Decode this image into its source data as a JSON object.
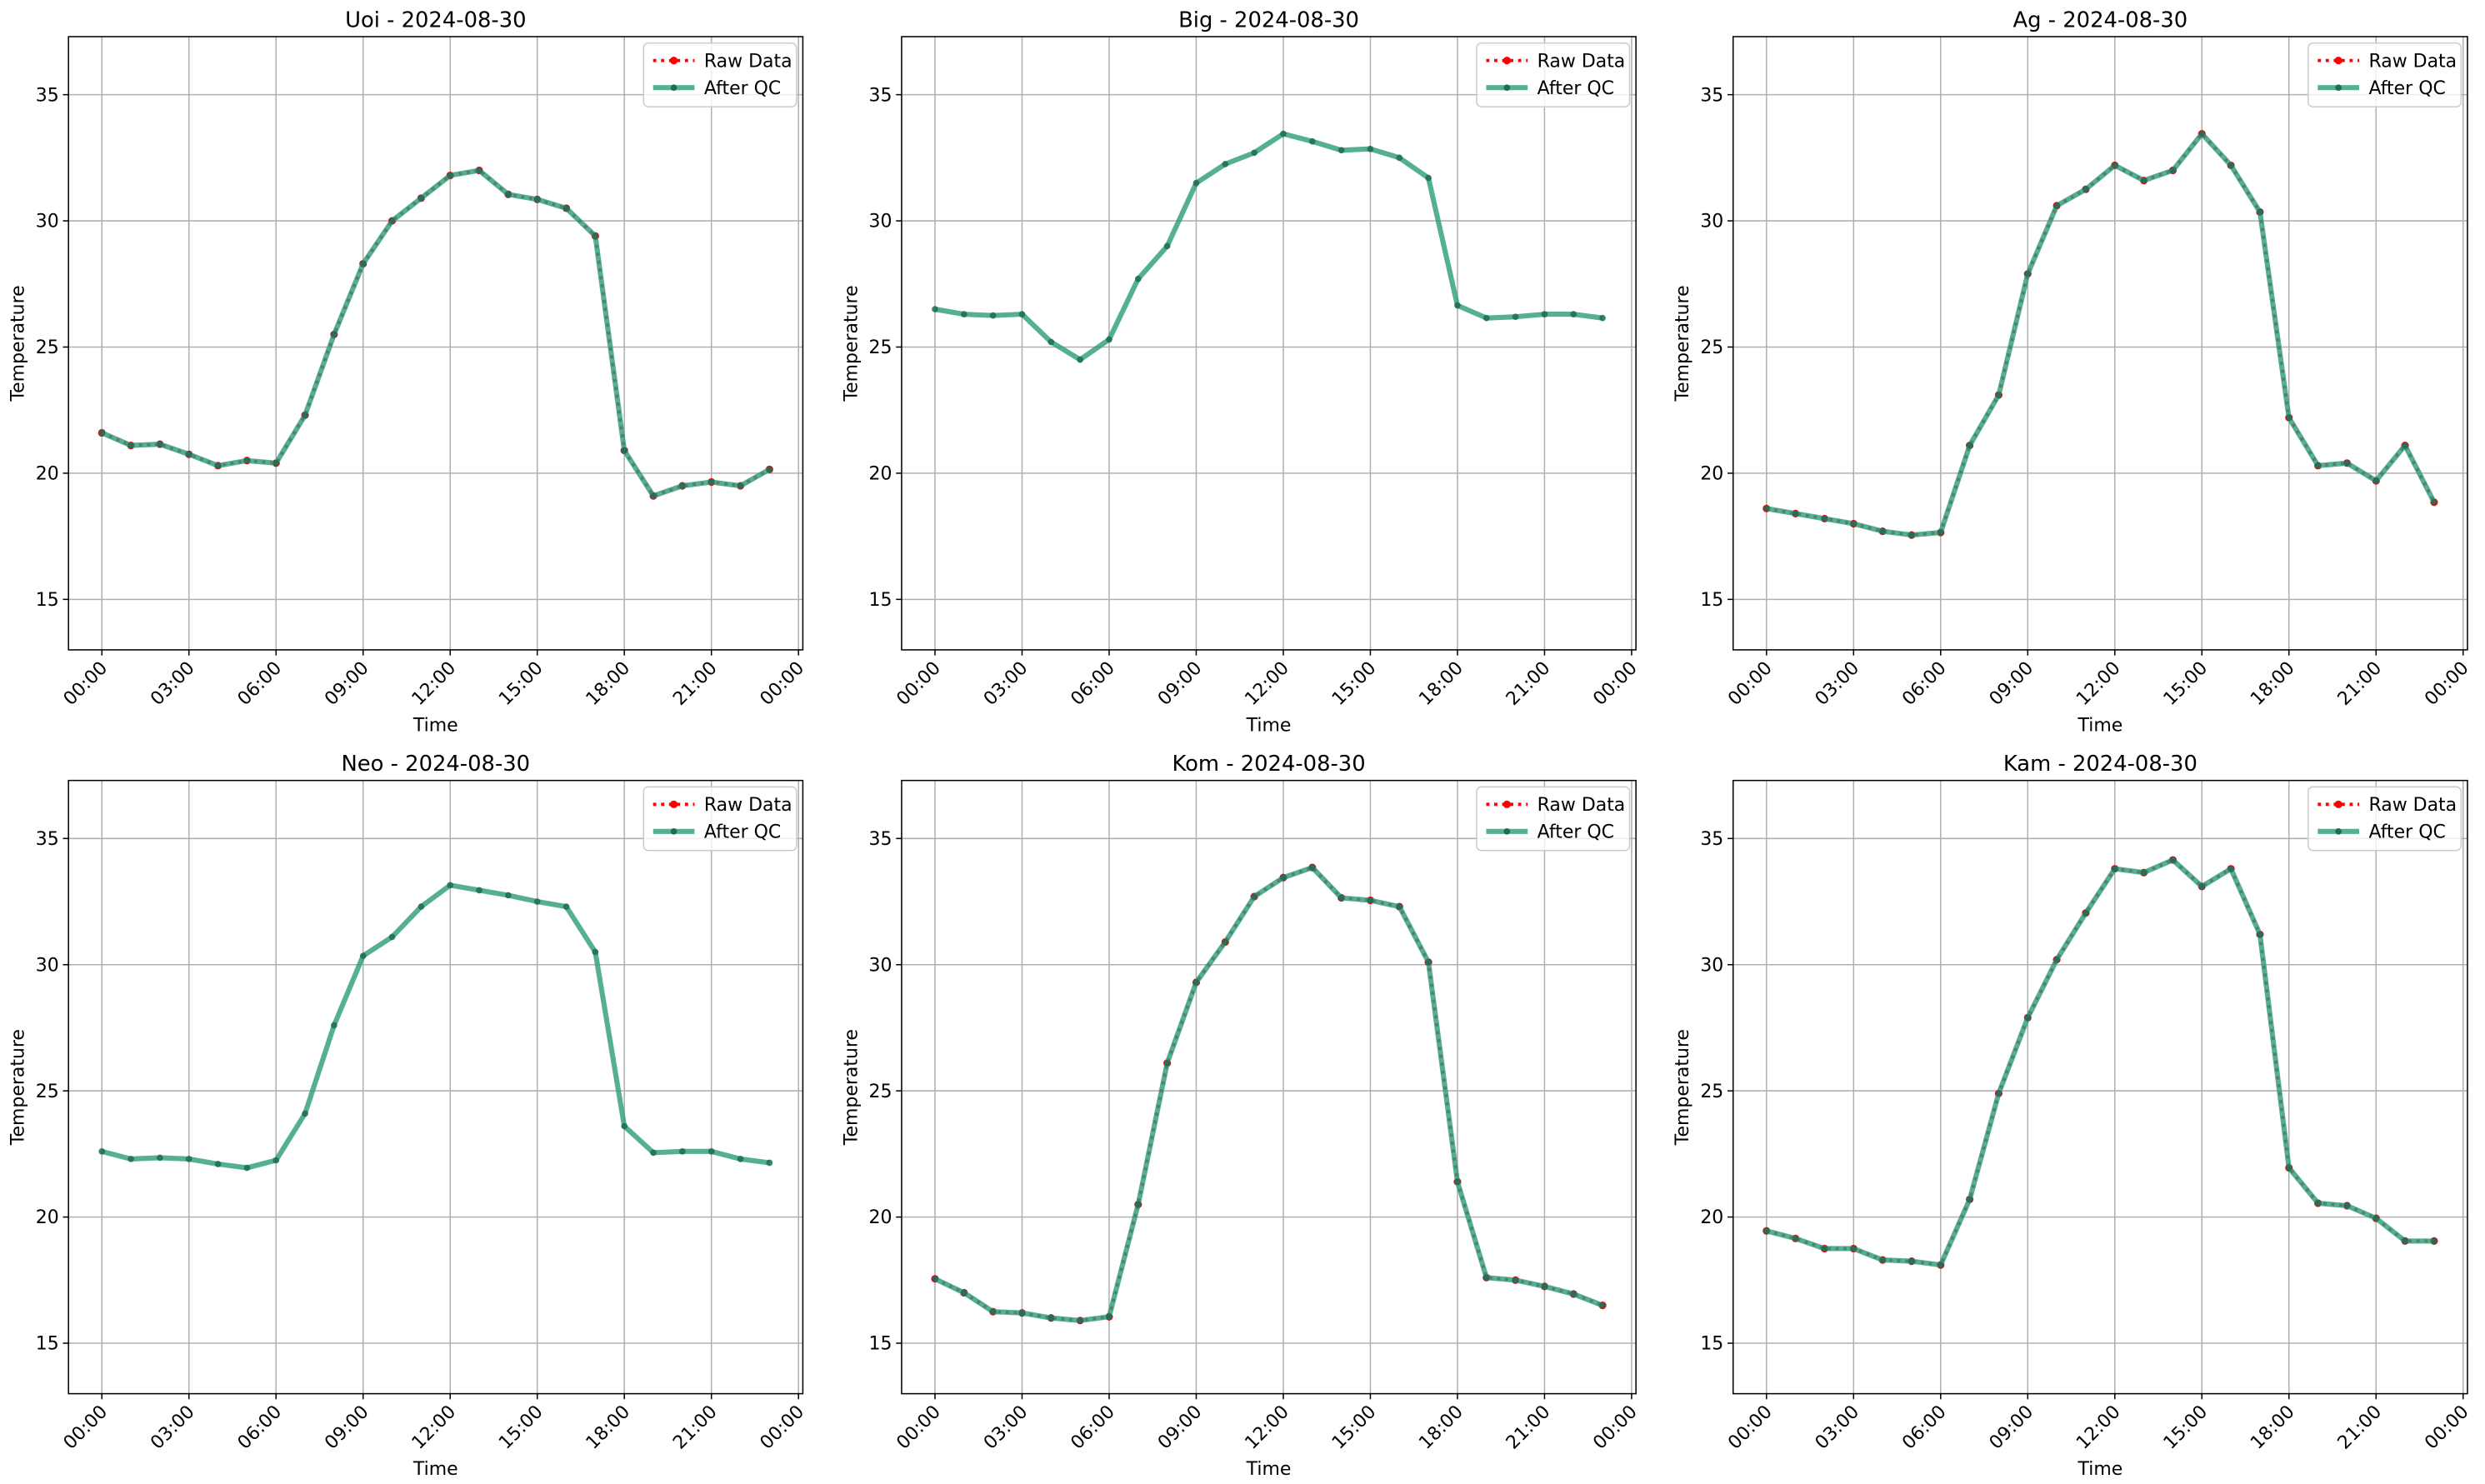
{
  "chart_data": [
    {
      "type": "line",
      "title": "Uoi - 2024-08-30",
      "xlabel": "Time",
      "ylabel": "Temperature",
      "x": [
        0,
        1,
        2,
        3,
        4,
        5,
        6,
        7,
        8,
        9,
        10,
        11,
        12,
        13,
        14,
        15,
        16,
        17,
        18,
        19,
        20,
        21,
        22,
        23
      ],
      "xlim": [
        -1.15,
        24.15
      ],
      "xticks": [
        {
          "value": 0,
          "label": "00:00"
        },
        {
          "value": 3,
          "label": "03:00"
        },
        {
          "value": 6,
          "label": "06:00"
        },
        {
          "value": 9,
          "label": "09:00"
        },
        {
          "value": 12,
          "label": "12:00"
        },
        {
          "value": 15,
          "label": "15:00"
        },
        {
          "value": 18,
          "label": "18:00"
        },
        {
          "value": 21,
          "label": "21:00"
        },
        {
          "value": 24,
          "label": "00:00"
        }
      ],
      "ylim": [
        13,
        37.3
      ],
      "yticks": [
        15,
        20,
        25,
        30,
        35
      ],
      "grid": true,
      "legend": "upper right",
      "series": [
        {
          "name": "Raw Data",
          "color": "#ff0000",
          "values": [
            21.6,
            21.1,
            21.15,
            20.75,
            20.3,
            20.5,
            20.4,
            22.3,
            25.5,
            28.3,
            30.0,
            30.9,
            31.8,
            32.0,
            31.05,
            30.85,
            30.5,
            29.4,
            20.9,
            19.1,
            19.5,
            19.65,
            19.5,
            20.15
          ]
        },
        {
          "name": "After QC",
          "color": "#2e9e7e",
          "values": [
            21.6,
            21.1,
            21.15,
            20.75,
            20.3,
            20.5,
            20.4,
            22.3,
            25.5,
            28.3,
            30.0,
            30.9,
            31.8,
            32.0,
            31.05,
            30.85,
            30.5,
            29.4,
            20.9,
            19.1,
            19.5,
            19.65,
            19.5,
            20.15
          ]
        }
      ]
    },
    {
      "type": "line",
      "title": "Big - 2024-08-30",
      "xlabel": "Time",
      "ylabel": "Temperature",
      "x": [
        0,
        1,
        2,
        3,
        4,
        5,
        6,
        7,
        8,
        9,
        10,
        11,
        12,
        13,
        14,
        15,
        16,
        17,
        18,
        19,
        20,
        21,
        22,
        23
      ],
      "xlim": [
        -1.15,
        24.15
      ],
      "xticks": [
        {
          "value": 0,
          "label": "00:00"
        },
        {
          "value": 3,
          "label": "03:00"
        },
        {
          "value": 6,
          "label": "06:00"
        },
        {
          "value": 9,
          "label": "09:00"
        },
        {
          "value": 12,
          "label": "12:00"
        },
        {
          "value": 15,
          "label": "15:00"
        },
        {
          "value": 18,
          "label": "18:00"
        },
        {
          "value": 21,
          "label": "21:00"
        },
        {
          "value": 24,
          "label": "00:00"
        }
      ],
      "ylim": [
        13,
        37.3
      ],
      "yticks": [
        15,
        20,
        25,
        30,
        35
      ],
      "grid": true,
      "legend": "upper right",
      "series": [
        {
          "name": "Raw Data",
          "color": "#ff0000",
          "values": [
            null,
            null,
            null,
            null,
            null,
            null,
            null,
            null,
            null,
            null,
            null,
            null,
            null,
            null,
            null,
            null,
            null,
            null,
            null,
            null,
            null,
            null,
            null,
            null
          ]
        },
        {
          "name": "After QC",
          "color": "#2e9e7e",
          "values": [
            26.5,
            26.3,
            26.25,
            26.3,
            25.2,
            24.5,
            25.3,
            27.7,
            29.0,
            31.5,
            32.25,
            32.7,
            33.45,
            33.15,
            32.8,
            32.85,
            32.5,
            31.7,
            26.65,
            26.15,
            26.2,
            26.3,
            26.3,
            26.15
          ]
        }
      ]
    },
    {
      "type": "line",
      "title": "Ag - 2024-08-30",
      "xlabel": "Time",
      "ylabel": "Temperature",
      "x": [
        0,
        1,
        2,
        3,
        4,
        5,
        6,
        7,
        8,
        9,
        10,
        11,
        12,
        13,
        14,
        15,
        16,
        17,
        18,
        19,
        20,
        21,
        22,
        23
      ],
      "xlim": [
        -1.15,
        24.15
      ],
      "xticks": [
        {
          "value": 0,
          "label": "00:00"
        },
        {
          "value": 3,
          "label": "03:00"
        },
        {
          "value": 6,
          "label": "06:00"
        },
        {
          "value": 9,
          "label": "09:00"
        },
        {
          "value": 12,
          "label": "12:00"
        },
        {
          "value": 15,
          "label": "15:00"
        },
        {
          "value": 18,
          "label": "18:00"
        },
        {
          "value": 21,
          "label": "21:00"
        },
        {
          "value": 24,
          "label": "00:00"
        }
      ],
      "ylim": [
        13,
        37.3
      ],
      "yticks": [
        15,
        20,
        25,
        30,
        35
      ],
      "grid": true,
      "legend": "upper right",
      "series": [
        {
          "name": "Raw Data",
          "color": "#ff0000",
          "values": [
            18.6,
            18.4,
            18.2,
            18.0,
            17.7,
            17.55,
            17.65,
            21.1,
            23.1,
            27.9,
            30.6,
            31.25,
            32.2,
            31.6,
            32.0,
            33.45,
            32.2,
            30.35,
            22.2,
            20.3,
            20.4,
            19.7,
            21.1,
            18.85
          ]
        },
        {
          "name": "After QC",
          "color": "#2e9e7e",
          "values": [
            18.6,
            18.4,
            18.2,
            18.0,
            17.7,
            17.55,
            17.65,
            21.1,
            23.1,
            27.9,
            30.6,
            31.25,
            32.2,
            31.6,
            32.0,
            33.45,
            32.2,
            30.35,
            22.2,
            20.3,
            20.4,
            19.7,
            21.1,
            18.85
          ]
        }
      ]
    },
    {
      "type": "line",
      "title": "Neo - 2024-08-30",
      "xlabel": "Time",
      "ylabel": "Temperature",
      "x": [
        0,
        1,
        2,
        3,
        4,
        5,
        6,
        7,
        8,
        9,
        10,
        11,
        12,
        13,
        14,
        15,
        16,
        17,
        18,
        19,
        20,
        21,
        22,
        23
      ],
      "xlim": [
        -1.15,
        24.15
      ],
      "xticks": [
        {
          "value": 0,
          "label": "00:00"
        },
        {
          "value": 3,
          "label": "03:00"
        },
        {
          "value": 6,
          "label": "06:00"
        },
        {
          "value": 9,
          "label": "09:00"
        },
        {
          "value": 12,
          "label": "12:00"
        },
        {
          "value": 15,
          "label": "15:00"
        },
        {
          "value": 18,
          "label": "18:00"
        },
        {
          "value": 21,
          "label": "21:00"
        },
        {
          "value": 24,
          "label": "00:00"
        }
      ],
      "ylim": [
        13,
        37.3
      ],
      "yticks": [
        15,
        20,
        25,
        30,
        35
      ],
      "grid": true,
      "legend": "upper right",
      "series": [
        {
          "name": "Raw Data",
          "color": "#ff0000",
          "values": [
            null,
            null,
            null,
            null,
            null,
            null,
            null,
            null,
            null,
            null,
            null,
            null,
            null,
            null,
            null,
            null,
            null,
            null,
            null,
            null,
            null,
            null,
            null,
            null
          ]
        },
        {
          "name": "After QC",
          "color": "#2e9e7e",
          "values": [
            22.6,
            22.3,
            22.35,
            22.3,
            22.1,
            21.95,
            22.25,
            24.1,
            27.6,
            30.35,
            31.1,
            32.3,
            33.15,
            32.95,
            32.75,
            32.5,
            32.3,
            30.5,
            23.6,
            22.55,
            22.6,
            22.6,
            22.3,
            22.15
          ]
        }
      ]
    },
    {
      "type": "line",
      "title": "Kom - 2024-08-30",
      "xlabel": "Time",
      "ylabel": "Temperature",
      "x": [
        0,
        1,
        2,
        3,
        4,
        5,
        6,
        7,
        8,
        9,
        10,
        11,
        12,
        13,
        14,
        15,
        16,
        17,
        18,
        19,
        20,
        21,
        22,
        23
      ],
      "xlim": [
        -1.15,
        24.15
      ],
      "xticks": [
        {
          "value": 0,
          "label": "00:00"
        },
        {
          "value": 3,
          "label": "03:00"
        },
        {
          "value": 6,
          "label": "06:00"
        },
        {
          "value": 9,
          "label": "09:00"
        },
        {
          "value": 12,
          "label": "12:00"
        },
        {
          "value": 15,
          "label": "15:00"
        },
        {
          "value": 18,
          "label": "18:00"
        },
        {
          "value": 21,
          "label": "21:00"
        },
        {
          "value": 24,
          "label": "00:00"
        }
      ],
      "ylim": [
        13,
        37.3
      ],
      "yticks": [
        15,
        20,
        25,
        30,
        35
      ],
      "grid": true,
      "legend": "upper right",
      "series": [
        {
          "name": "Raw Data",
          "color": "#ff0000",
          "values": [
            17.55,
            17.0,
            16.25,
            16.2,
            16.0,
            15.9,
            16.05,
            20.5,
            26.1,
            29.3,
            30.9,
            32.7,
            33.45,
            33.85,
            32.65,
            32.55,
            32.3,
            30.1,
            21.4,
            17.6,
            17.5,
            17.25,
            16.95,
            16.5
          ]
        },
        {
          "name": "After QC",
          "color": "#2e9e7e",
          "values": [
            17.55,
            17.0,
            16.25,
            16.2,
            16.0,
            15.9,
            16.05,
            20.5,
            26.1,
            29.3,
            30.9,
            32.7,
            33.45,
            33.85,
            32.65,
            32.55,
            32.3,
            30.1,
            21.4,
            17.6,
            17.5,
            17.25,
            16.95,
            16.5
          ]
        }
      ]
    },
    {
      "type": "line",
      "title": "Kam - 2024-08-30",
      "xlabel": "Time",
      "ylabel": "Temperature",
      "x": [
        0,
        1,
        2,
        3,
        4,
        5,
        6,
        7,
        8,
        9,
        10,
        11,
        12,
        13,
        14,
        15,
        16,
        17,
        18,
        19,
        20,
        21,
        22,
        23
      ],
      "xlim": [
        -1.15,
        24.15
      ],
      "xticks": [
        {
          "value": 0,
          "label": "00:00"
        },
        {
          "value": 3,
          "label": "03:00"
        },
        {
          "value": 6,
          "label": "06:00"
        },
        {
          "value": 9,
          "label": "09:00"
        },
        {
          "value": 12,
          "label": "12:00"
        },
        {
          "value": 15,
          "label": "15:00"
        },
        {
          "value": 18,
          "label": "18:00"
        },
        {
          "value": 21,
          "label": "21:00"
        },
        {
          "value": 24,
          "label": "00:00"
        }
      ],
      "ylim": [
        13,
        37.3
      ],
      "yticks": [
        15,
        20,
        25,
        30,
        35
      ],
      "grid": true,
      "legend": "upper right",
      "series": [
        {
          "name": "Raw Data",
          "color": "#ff0000",
          "values": [
            19.45,
            19.15,
            18.75,
            18.75,
            18.3,
            18.25,
            18.1,
            20.7,
            24.9,
            27.9,
            30.2,
            32.05,
            33.8,
            33.65,
            34.15,
            33.1,
            33.8,
            31.2,
            21.95,
            20.55,
            20.45,
            19.95,
            19.05,
            19.05
          ]
        },
        {
          "name": "After QC",
          "color": "#2e9e7e",
          "values": [
            19.45,
            19.15,
            18.75,
            18.75,
            18.3,
            18.25,
            18.1,
            20.7,
            24.9,
            27.9,
            30.2,
            32.05,
            33.8,
            33.65,
            34.15,
            33.1,
            33.8,
            31.2,
            21.95,
            20.55,
            20.45,
            19.95,
            19.05,
            19.05
          ]
        }
      ]
    }
  ]
}
